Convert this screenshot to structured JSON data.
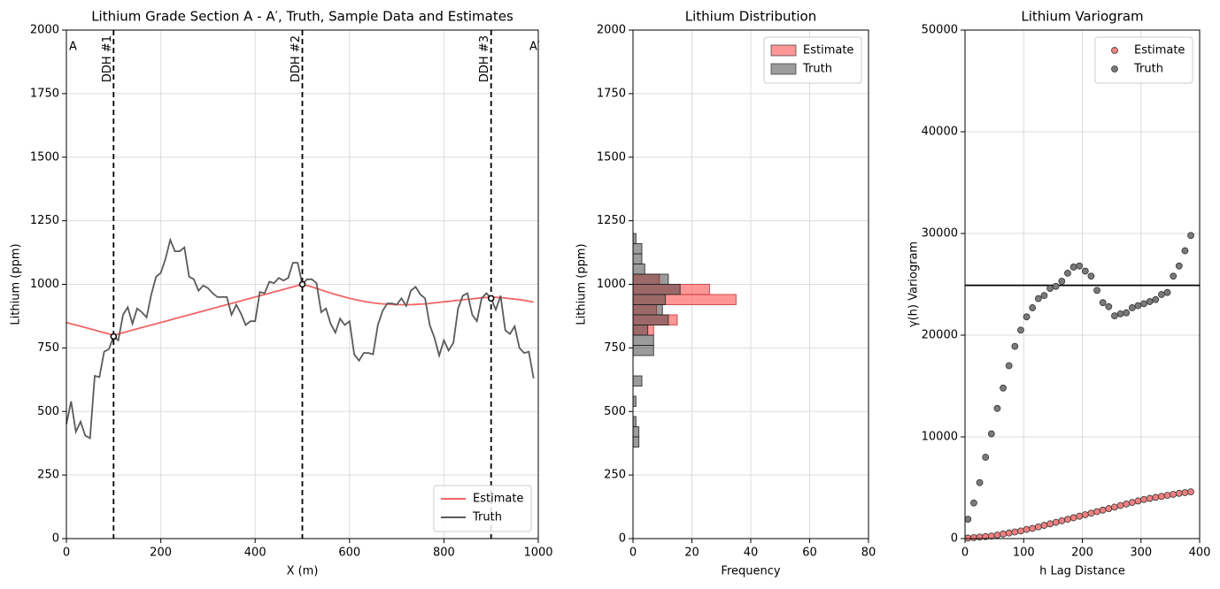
{
  "chart_data": [
    {
      "type": "line",
      "title": "Lithium Grade Section A - A′, Truth, Sample Data and Estimates",
      "xlabel": "X (m)",
      "ylabel": "Lithium (ppm)",
      "xlim": [
        0,
        1000
      ],
      "ylim": [
        0,
        2000
      ],
      "xticks": [
        0,
        200,
        400,
        600,
        800,
        1000
      ],
      "yticks": [
        0,
        250,
        500,
        750,
        1000,
        1250,
        1500,
        1750,
        2000
      ],
      "grid": true,
      "legend": "lower right",
      "x": [
        0,
        10,
        20,
        30,
        40,
        50,
        60,
        70,
        80,
        90,
        100,
        110,
        120,
        130,
        140,
        150,
        160,
        170,
        180,
        190,
        200,
        210,
        220,
        230,
        240,
        250,
        260,
        270,
        280,
        290,
        300,
        310,
        320,
        330,
        340,
        350,
        360,
        370,
        380,
        390,
        400,
        410,
        420,
        430,
        440,
        450,
        460,
        470,
        480,
        490,
        500,
        510,
        520,
        530,
        540,
        550,
        560,
        570,
        580,
        590,
        600,
        610,
        620,
        630,
        640,
        650,
        660,
        670,
        680,
        690,
        700,
        710,
        720,
        730,
        740,
        750,
        760,
        770,
        780,
        790,
        800,
        810,
        820,
        830,
        840,
        850,
        860,
        870,
        880,
        890,
        900,
        910,
        920,
        930,
        940,
        950,
        960,
        970,
        980,
        990
      ],
      "series": [
        {
          "name": "Estimate",
          "color": "#f26464",
          "values": [
            850,
            845,
            840,
            835,
            830,
            825,
            820,
            815,
            810,
            805,
            800,
            805,
            810,
            815,
            820,
            825,
            830,
            835,
            840,
            845,
            850,
            855,
            860,
            865,
            870,
            875,
            880,
            885,
            890,
            895,
            900,
            905,
            910,
            915,
            920,
            925,
            930,
            935,
            940,
            945,
            950,
            955,
            960,
            965,
            970,
            975,
            980,
            985,
            990,
            995,
            1000,
            995,
            990,
            984,
            978,
            972,
            966,
            960,
            955,
            950,
            945,
            941,
            937,
            933,
            930,
            927,
            925,
            923,
            922,
            921,
            920,
            920,
            920,
            920,
            921,
            922,
            923,
            925,
            927,
            929,
            931,
            933,
            935,
            937,
            939,
            941,
            943,
            945,
            947,
            948,
            950,
            949,
            948,
            946,
            944,
            942,
            940,
            937,
            934,
            930
          ]
        },
        {
          "name": "Truth",
          "color": "#5a5a5a",
          "values": [
            450,
            540,
            420,
            460,
            405,
            395,
            640,
            635,
            735,
            745,
            795,
            780,
            880,
            910,
            845,
            905,
            890,
            870,
            960,
            1030,
            1045,
            1100,
            1175,
            1130,
            1130,
            1145,
            1030,
            1020,
            975,
            995,
            985,
            965,
            950,
            950,
            950,
            880,
            920,
            885,
            840,
            855,
            855,
            970,
            965,
            1010,
            1005,
            1025,
            1015,
            1025,
            1085,
            1085,
            1000,
            1020,
            1020,
            1005,
            890,
            905,
            845,
            810,
            865,
            840,
            855,
            725,
            700,
            730,
            730,
            725,
            840,
            895,
            925,
            925,
            920,
            945,
            915,
            975,
            990,
            960,
            945,
            840,
            790,
            720,
            780,
            740,
            770,
            905,
            955,
            965,
            880,
            855,
            945,
            965,
            945,
            900,
            955,
            820,
            805,
            835,
            750,
            730,
            735,
            630
          ]
        }
      ],
      "wells": [
        {
          "x": 100,
          "label": "DDH #1"
        },
        {
          "x": 500,
          "label": "DDH #2"
        },
        {
          "x": 900,
          "label": "DDH #3"
        }
      ],
      "samples": {
        "x": [
          100,
          500,
          900
        ],
        "values": [
          795,
          1000,
          945
        ]
      },
      "annotations": [
        "A",
        "A′"
      ],
      "annotation_color": "#e02020"
    },
    {
      "type": "histogram",
      "orientation": "horizontal",
      "title": "Lithium Distribution",
      "xlabel": "Frequency",
      "ylabel": "Lithium (ppm)",
      "xlim": [
        0,
        80
      ],
      "ylim": [
        0,
        2000
      ],
      "xticks": [
        0,
        20,
        40,
        60,
        80
      ],
      "yticks": [
        0,
        250,
        500,
        750,
        1000,
        1250,
        1500,
        1750,
        2000
      ],
      "grid": true,
      "legend": "upper right",
      "bins": [
        360,
        400,
        440,
        480,
        520,
        560,
        600,
        640,
        680,
        720,
        760,
        800,
        840,
        880,
        920,
        960,
        1000,
        1040,
        1080,
        1120,
        1160,
        1200
      ],
      "series": [
        {
          "name": "Estimate",
          "color": "#ff6b6b",
          "values": [
            0,
            0,
            0,
            0,
            0,
            0,
            0,
            0,
            0,
            0,
            0,
            7,
            15,
            8,
            35,
            26,
            9,
            0,
            0,
            0,
            0
          ]
        },
        {
          "name": "Truth",
          "color": "#3a3a3a",
          "values": [
            2,
            2,
            1,
            0,
            1,
            0,
            3,
            0,
            0,
            7,
            7,
            5,
            12,
            10,
            11,
            16,
            12,
            4,
            3,
            3,
            1
          ]
        }
      ]
    },
    {
      "type": "scatter",
      "title": "Lithium Variogram",
      "xlabel": "h Lag Distance",
      "ylabel": "γ(h) Variogram",
      "xlim": [
        0,
        400
      ],
      "ylim": [
        0,
        50000
      ],
      "xticks": [
        0,
        100,
        200,
        300,
        400
      ],
      "yticks": [
        0,
        10000,
        20000,
        30000,
        40000,
        50000
      ],
      "grid": true,
      "legend": "upper right",
      "hline": 24900,
      "x": [
        5,
        15,
        25,
        35,
        45,
        55,
        65,
        75,
        85,
        95,
        105,
        115,
        125,
        135,
        145,
        155,
        165,
        175,
        185,
        195,
        205,
        215,
        225,
        235,
        245,
        255,
        265,
        275,
        285,
        295,
        305,
        315,
        325,
        335,
        345,
        355,
        365,
        375,
        385
      ],
      "series": [
        {
          "name": "Estimate",
          "color": "#f08080",
          "values": [
            50,
            100,
            150,
            200,
            250,
            350,
            450,
            550,
            650,
            750,
            900,
            1000,
            1150,
            1300,
            1450,
            1600,
            1750,
            1900,
            2050,
            2200,
            2350,
            2500,
            2650,
            2800,
            2950,
            3100,
            3250,
            3400,
            3550,
            3700,
            3850,
            3950,
            4050,
            4150,
            4250,
            4350,
            4450,
            4520,
            4600
          ]
        },
        {
          "name": "Truth",
          "color": "#7a7a7a",
          "values": [
            1900,
            3500,
            5500,
            8000,
            10300,
            12800,
            14800,
            17000,
            18900,
            20500,
            21800,
            22700,
            23600,
            23900,
            24600,
            24800,
            25300,
            26100,
            26700,
            26800,
            26300,
            25800,
            24400,
            23200,
            22800,
            21900,
            22100,
            22200,
            22700,
            22900,
            23100,
            23300,
            23500,
            24000,
            24200,
            25800,
            26800,
            28300,
            29800
          ]
        }
      ]
    }
  ]
}
